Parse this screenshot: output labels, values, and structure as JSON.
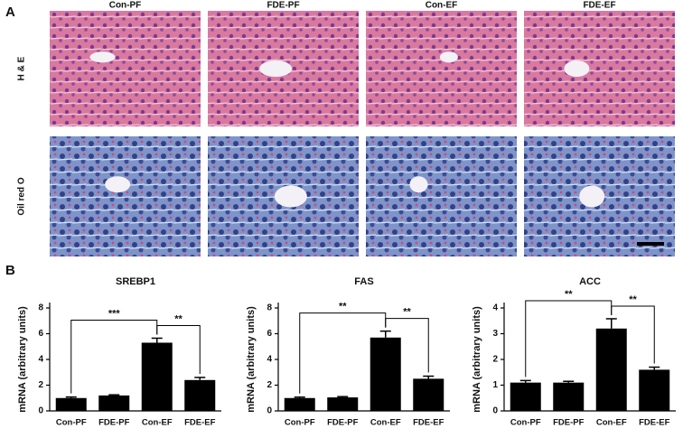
{
  "panel_a": {
    "label": "A",
    "columns": [
      "Con-PF",
      "FDE-PF",
      "Con-EF",
      "FDE-EF"
    ],
    "rows": [
      "H & E",
      "Oil red O"
    ]
  },
  "panel_b_label": "B",
  "chart_data": [
    {
      "type": "bar",
      "title": "SREBP1",
      "y_label": "mRNA (arbitrary units)",
      "categories": [
        "Con-PF",
        "FDE-PF",
        "Con-EF",
        "FDE-EF"
      ],
      "values": [
        1.0,
        1.2,
        5.3,
        2.4
      ],
      "errors": [
        0.08,
        0.05,
        0.35,
        0.2
      ],
      "color": "#000000",
      "ylim": [
        0,
        8
      ],
      "yticks": [
        0,
        2,
        4,
        6,
        8
      ],
      "comparisons": [
        {
          "label": "***",
          "groups": [
            "Con-PF",
            "Con-EF"
          ]
        },
        {
          "label": "**",
          "groups": [
            "Con-EF",
            "FDE-EF"
          ]
        }
      ]
    },
    {
      "type": "bar",
      "title": "FAS",
      "y_label": "mRNA (arbitrary units)",
      "categories": [
        "Con-PF",
        "FDE-PF",
        "Con-EF",
        "FDE-EF"
      ],
      "values": [
        1.0,
        1.05,
        5.7,
        2.5
      ],
      "errors": [
        0.07,
        0.06,
        0.5,
        0.2
      ],
      "color": "#000000",
      "ylim": [
        0,
        8
      ],
      "yticks": [
        0,
        2,
        4,
        6,
        8
      ],
      "comparisons": [
        {
          "label": "**",
          "groups": [
            "Con-PF",
            "Con-EF"
          ]
        },
        {
          "label": "**",
          "groups": [
            "Con-EF",
            "FDE-EF"
          ]
        }
      ]
    },
    {
      "type": "bar",
      "title": "ACC",
      "y_label": "mRNA (arbitrary units)",
      "categories": [
        "Con-PF",
        "FDE-PF",
        "Con-EF",
        "FDE-EF"
      ],
      "values": [
        1.1,
        1.1,
        3.2,
        1.6
      ],
      "errors": [
        0.08,
        0.05,
        0.38,
        0.1
      ],
      "color": "#000000",
      "ylim": [
        0,
        4
      ],
      "yticks": [
        0,
        1,
        2,
        3,
        4
      ],
      "comparisons": [
        {
          "label": "**",
          "groups": [
            "Con-PF",
            "Con-EF"
          ]
        },
        {
          "label": "**",
          "groups": [
            "Con-EF",
            "FDE-EF"
          ]
        }
      ]
    }
  ]
}
